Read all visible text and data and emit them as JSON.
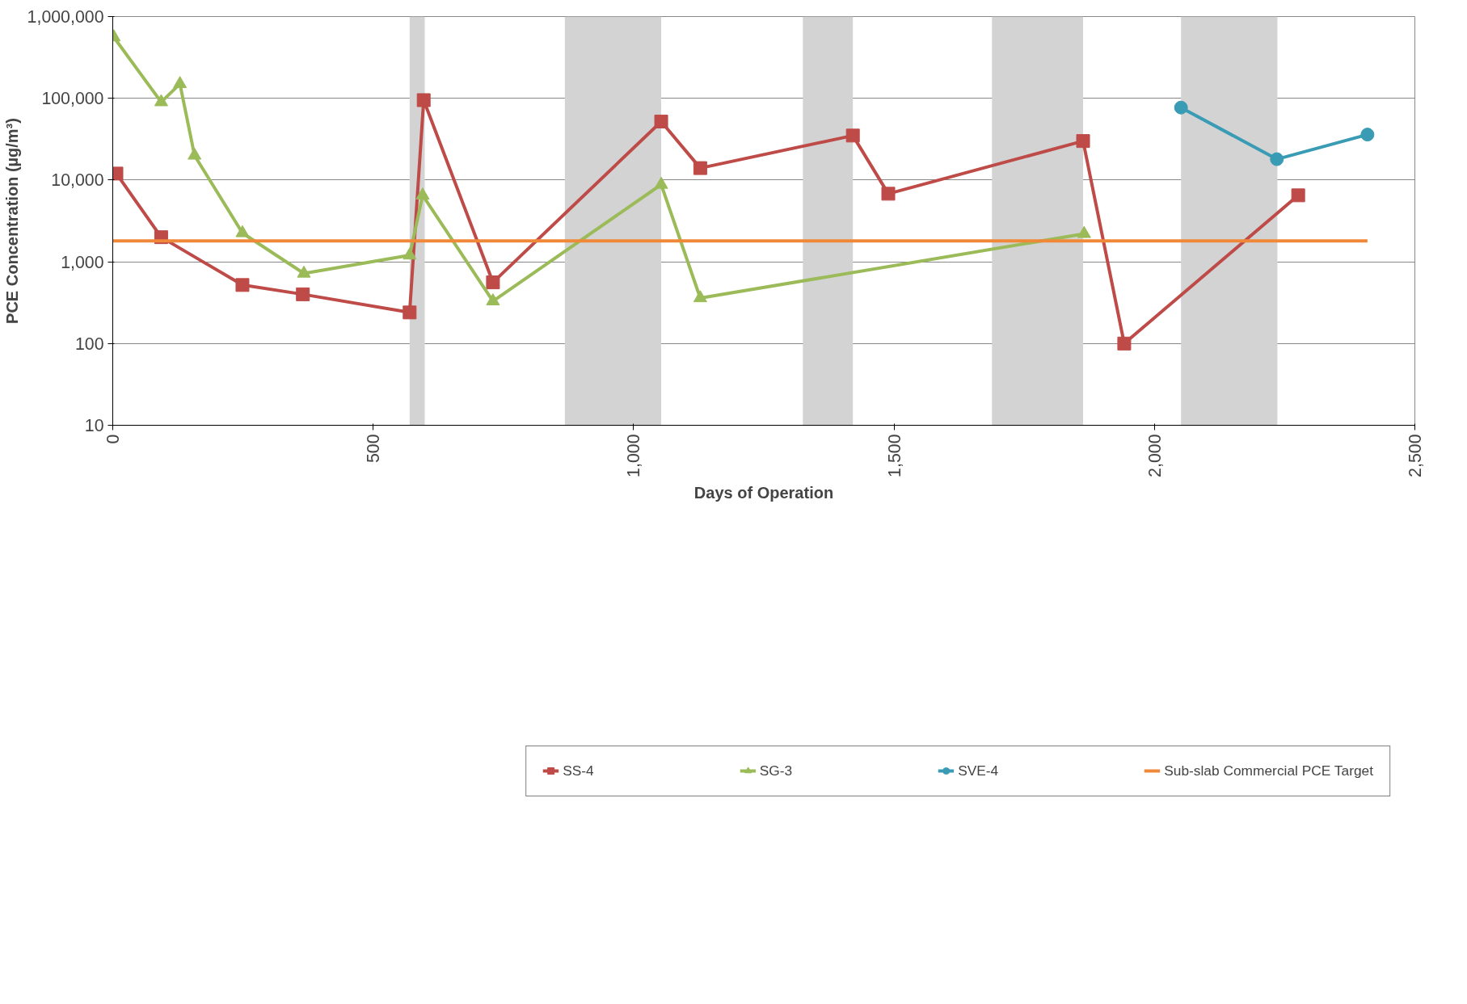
{
  "chart_data": {
    "type": "line",
    "xlabel": "Days of Operation",
    "ylabel": "PCE Concentration (µg/m³)",
    "xlim": [
      0,
      2500
    ],
    "xticks": [
      0,
      500,
      {
        "value": 1000,
        "label": "1,000"
      },
      {
        "value": 1500,
        "label": "1,500"
      },
      {
        "value": 2000,
        "label": "2,000"
      },
      {
        "value": 2500,
        "label": "2,500"
      }
    ],
    "ylim": [
      10,
      1000000
    ],
    "yticks": [
      10,
      100,
      {
        "value": 1000,
        "label": "1,000"
      },
      {
        "value": 10000,
        "label": "10,000"
      },
      {
        "value": 100000,
        "label": "100,000"
      },
      {
        "value": 1000000,
        "label": "1,000,000"
      }
    ],
    "log": true,
    "grid": "y",
    "legend": "bottom",
    "line_style": "solid",
    "series": [
      {
        "name": "SS-4",
        "color": "#be4b48",
        "marker": "square",
        "x": [
          7,
          93,
          249,
          365,
          570,
          597,
          730,
          1053,
          1128,
          1421,
          1489,
          1863,
          1942,
          2276
        ],
        "values": [
          12000,
          2000,
          520,
          400,
          240,
          95000,
          560,
          52000,
          14000,
          35000,
          6800,
          30000,
          100,
          6500
        ]
      },
      {
        "name": "SG-3",
        "color": "#9bbb59",
        "marker": "triangle",
        "x": [
          2,
          93,
          129,
          157,
          249,
          367,
          570,
          595,
          730,
          1053,
          1128,
          1865
        ],
        "values": [
          560000,
          90000,
          150000,
          20000,
          2250,
          720,
          1200,
          6500,
          330,
          8800,
          360,
          2200
        ]
      },
      {
        "name": "SVE-4",
        "color": "#3a9bb5",
        "marker": "circle",
        "x": [
          2051,
          2235,
          2409
        ],
        "values": [
          77000,
          18000,
          36000
        ]
      },
      {
        "name": "Sub-slab Commercial PCE Target",
        "color": "#f0883a",
        "marker": "none",
        "x": [
          0,
          2409
        ],
        "values": [
          1800,
          1800
        ]
      }
    ],
    "bands": [
      {
        "axis": "x",
        "from": 570,
        "to": 599,
        "label": null,
        "color": "#d3d3d3"
      },
      {
        "axis": "x",
        "from": 868,
        "to": 1053,
        "label": null,
        "color": "#d3d3d3"
      },
      {
        "axis": "x",
        "from": 1325,
        "to": 1421,
        "label": null,
        "color": "#d3d3d3"
      },
      {
        "axis": "x",
        "from": 1688,
        "to": 1863,
        "label": null,
        "color": "#d3d3d3"
      },
      {
        "axis": "x",
        "from": 2051,
        "to": 2236,
        "label": null,
        "color": "#d3d3d3"
      }
    ]
  }
}
